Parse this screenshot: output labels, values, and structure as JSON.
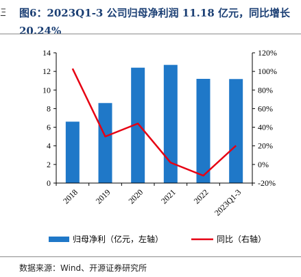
{
  "title": "图6：2023Q1-3 公司归母净利润 11.18 亿元，同比增长 20.24%",
  "source": "数据来源：Wind、开源证券研究所",
  "colors": {
    "bar": "#1f78c8",
    "line": "#e60012",
    "title": "#1b3f74"
  },
  "chart_data": {
    "type": "bar",
    "categories": [
      "2018",
      "2019",
      "2020",
      "2021",
      "2022",
      "2023Q1-3"
    ],
    "series": [
      {
        "name": "归母净利（亿元，左轴）",
        "type": "bar",
        "axis": "left",
        "values": [
          6.6,
          8.6,
          12.4,
          12.7,
          11.2,
          11.18
        ]
      },
      {
        "name": "同比（右轴）",
        "type": "line",
        "axis": "right",
        "values": [
          103,
          30,
          44,
          2,
          -12,
          20.24
        ]
      }
    ],
    "y_left": {
      "range": [
        0,
        14
      ],
      "ticks": [
        "0",
        "2",
        "4",
        "6",
        "8",
        "10",
        "12",
        "14"
      ]
    },
    "y_right": {
      "range": [
        -20,
        120
      ],
      "ticks": [
        "-20%",
        "0%",
        "20%",
        "40%",
        "60%",
        "80%",
        "100%",
        "120%"
      ]
    },
    "legend": [
      "归母净利（亿元，左轴）",
      "同比（右轴）"
    ],
    "legend_position": "bottom",
    "grid": false
  }
}
